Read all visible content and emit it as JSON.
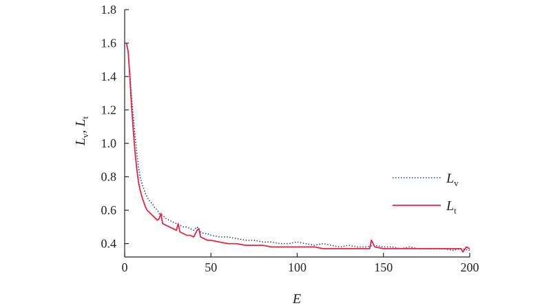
{
  "chart_data": {
    "type": "line",
    "xlabel": "E",
    "ylabel": {
      "parts": [
        {
          "main": "L",
          "sub": "v"
        },
        {
          "main": "L",
          "sub": "t"
        }
      ],
      "separator": ", "
    },
    "xlim": [
      0,
      200
    ],
    "ylim": [
      0.32,
      1.8
    ],
    "xticks": [
      "0",
      "50",
      "100",
      "150",
      "200"
    ],
    "xtick_values": [
      0,
      50,
      100,
      150,
      200
    ],
    "yticks": [
      "0.4",
      "0.6",
      "0.8",
      "1.0",
      "1.2",
      "1.4",
      "1.6",
      "1.8"
    ],
    "ytick_values": [
      0.4,
      0.6,
      0.8,
      1.0,
      1.2,
      1.4,
      1.6,
      1.8
    ],
    "grid": false,
    "legend_position": "right",
    "series": [
      {
        "name": "Lv",
        "label_main": "L",
        "label_sub": "v",
        "style": "dotted",
        "color": "#2e3f8f",
        "x": [
          1,
          2,
          3,
          4,
          5,
          6,
          7,
          8,
          9,
          10,
          11,
          12,
          13,
          14,
          15,
          16,
          17,
          18,
          19,
          20,
          22,
          24,
          26,
          28,
          30,
          32,
          34,
          36,
          38,
          40,
          42,
          44,
          46,
          48,
          50,
          55,
          60,
          65,
          70,
          75,
          80,
          85,
          90,
          95,
          100,
          105,
          110,
          115,
          120,
          125,
          130,
          135,
          140,
          145,
          150,
          155,
          160,
          165,
          170,
          175,
          180,
          185,
          190,
          195,
          200
        ],
        "y": [
          1.6,
          1.55,
          1.42,
          1.28,
          1.16,
          1.05,
          0.95,
          0.86,
          0.8,
          0.76,
          0.73,
          0.7,
          0.68,
          0.66,
          0.65,
          0.64,
          0.62,
          0.61,
          0.6,
          0.58,
          0.57,
          0.55,
          0.54,
          0.53,
          0.52,
          0.51,
          0.5,
          0.5,
          0.49,
          0.48,
          0.5,
          0.47,
          0.46,
          0.46,
          0.45,
          0.44,
          0.44,
          0.43,
          0.42,
          0.42,
          0.41,
          0.41,
          0.4,
          0.4,
          0.41,
          0.4,
          0.39,
          0.4,
          0.39,
          0.38,
          0.39,
          0.38,
          0.38,
          0.39,
          0.38,
          0.38,
          0.37,
          0.38,
          0.37,
          0.37,
          0.37,
          0.37,
          0.36,
          0.37,
          0.36
        ]
      },
      {
        "name": "Lt",
        "label_main": "L",
        "label_sub": "t",
        "style": "solid",
        "color": "#e8223a",
        "x": [
          1,
          2,
          3,
          4,
          5,
          6,
          7,
          8,
          9,
          10,
          11,
          12,
          13,
          14,
          15,
          16,
          17,
          18,
          19,
          20,
          21,
          22,
          24,
          26,
          28,
          30,
          31,
          32,
          34,
          36,
          38,
          40,
          42,
          43,
          44,
          46,
          48,
          50,
          55,
          60,
          65,
          70,
          75,
          80,
          85,
          90,
          95,
          100,
          105,
          110,
          115,
          120,
          125,
          130,
          135,
          140,
          142,
          143,
          145,
          150,
          155,
          160,
          165,
          170,
          175,
          180,
          185,
          190,
          195,
          196,
          198,
          200
        ],
        "y": [
          1.6,
          1.55,
          1.4,
          1.22,
          1.08,
          0.95,
          0.85,
          0.77,
          0.72,
          0.68,
          0.65,
          0.62,
          0.6,
          0.59,
          0.58,
          0.57,
          0.56,
          0.55,
          0.54,
          0.55,
          0.58,
          0.52,
          0.51,
          0.5,
          0.49,
          0.48,
          0.52,
          0.47,
          0.46,
          0.45,
          0.45,
          0.44,
          0.48,
          0.49,
          0.44,
          0.43,
          0.42,
          0.42,
          0.41,
          0.4,
          0.4,
          0.39,
          0.39,
          0.39,
          0.38,
          0.38,
          0.38,
          0.38,
          0.38,
          0.38,
          0.37,
          0.37,
          0.37,
          0.37,
          0.37,
          0.37,
          0.37,
          0.42,
          0.38,
          0.37,
          0.37,
          0.37,
          0.37,
          0.37,
          0.37,
          0.37,
          0.37,
          0.37,
          0.37,
          0.35,
          0.38,
          0.37
        ]
      }
    ]
  }
}
